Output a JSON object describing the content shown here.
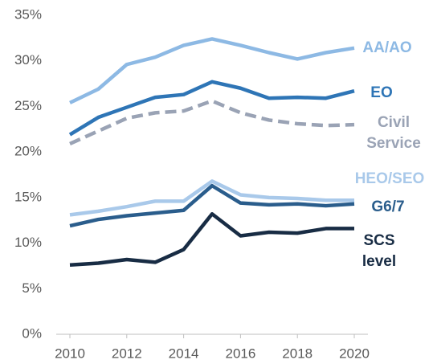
{
  "chart_data": {
    "type": "line",
    "x": [
      2010,
      2011,
      2012,
      2013,
      2014,
      2015,
      2016,
      2017,
      2018,
      2019,
      2020
    ],
    "xlim": [
      2010,
      2020
    ],
    "xticks": [
      2010,
      2012,
      2014,
      2016,
      2018,
      2020
    ],
    "ylim": [
      0,
      35
    ],
    "yticks": [
      {
        "value": 0,
        "label": "0%"
      },
      {
        "value": 5,
        "label": "5%"
      },
      {
        "value": 10,
        "label": "10%"
      },
      {
        "value": 15,
        "label": "15%"
      },
      {
        "value": 20,
        "label": "20%"
      },
      {
        "value": 25,
        "label": "25%"
      },
      {
        "value": 30,
        "label": "30%"
      },
      {
        "value": 35,
        "label": "35%"
      }
    ],
    "grid": false,
    "series": [
      {
        "name": "AA/AO",
        "color": "#8db9e4",
        "values": [
          25.4,
          26.9,
          29.6,
          30.4,
          31.7,
          32.4,
          31.7,
          30.9,
          30.2,
          30.9,
          31.4
        ]
      },
      {
        "name": "EO",
        "color": "#2e75b6",
        "values": [
          21.9,
          23.8,
          24.9,
          26.0,
          26.3,
          27.7,
          27.0,
          25.9,
          26.0,
          25.9,
          26.7
        ]
      },
      {
        "name": "Civil Service",
        "color": "#9aa3b5",
        "dashed": true,
        "values": [
          20.9,
          22.3,
          23.7,
          24.3,
          24.5,
          25.6,
          24.3,
          23.5,
          23.1,
          22.9,
          23.0
        ]
      },
      {
        "name": "HEO/SEO",
        "color": "#a9c9ea",
        "values": [
          13.1,
          13.5,
          14.0,
          14.6,
          14.6,
          16.8,
          15.3,
          15.0,
          14.9,
          14.7,
          14.7
        ]
      },
      {
        "name": "G6/7",
        "color": "#2a5d8c",
        "values": [
          11.9,
          12.6,
          13.0,
          13.3,
          13.6,
          16.3,
          14.4,
          14.2,
          14.3,
          14.1,
          14.3
        ]
      },
      {
        "name": "SCS level",
        "color": "#182c44",
        "values": [
          7.6,
          7.8,
          8.2,
          7.9,
          9.3,
          13.2,
          10.8,
          11.2,
          11.1,
          11.6,
          11.6
        ]
      }
    ]
  }
}
